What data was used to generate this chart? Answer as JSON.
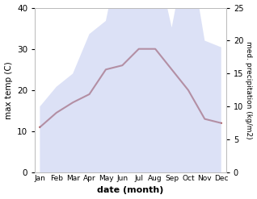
{
  "months": [
    "Jan",
    "Feb",
    "Mar",
    "Apr",
    "May",
    "Jun",
    "Jul",
    "Aug",
    "Sep",
    "Oct",
    "Nov",
    "Dec"
  ],
  "max_temp": [
    11,
    14.5,
    17,
    19,
    25,
    26,
    30,
    30,
    25,
    20,
    13,
    12
  ],
  "precipitation": [
    10,
    13,
    15,
    21,
    23,
    35,
    38,
    33,
    22,
    35,
    20,
    19
  ],
  "precip_color_fill": "#c5cdf0",
  "precip_fill_alpha": 0.6,
  "temp_line_color": "#993333",
  "left_ylabel": "max temp (C)",
  "right_ylabel": "med. precipitation (kg/m2)",
  "xlabel": "date (month)",
  "left_ylim": [
    0,
    40
  ],
  "right_ylim": [
    0,
    25
  ],
  "left_yticks": [
    0,
    10,
    20,
    30,
    40
  ],
  "right_yticks": [
    0,
    5,
    10,
    15,
    20,
    25
  ],
  "bg_color": "#ffffff"
}
